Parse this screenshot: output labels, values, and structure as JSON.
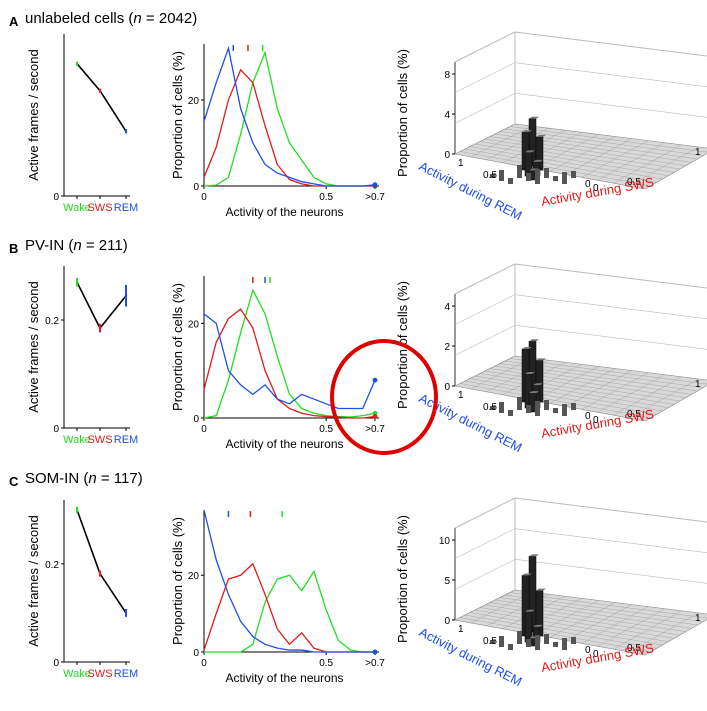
{
  "colors": {
    "wake": "#22dd22",
    "sws": "#e21b1b",
    "rem": "#1f4fe6",
    "mean": "#000000",
    "highlight": "#e00000"
  },
  "panels": [
    {
      "letter": "A",
      "name": "unlabeled cells",
      "n_prefix": "(",
      "n_symbol": "n",
      "n_text": " = 2042)"
    },
    {
      "letter": "B",
      "name": "PV-IN",
      "n_prefix": "(",
      "n_symbol": "n",
      "n_text": " = 211)"
    },
    {
      "letter": "C",
      "name": "SOM-IN",
      "n_prefix": "(",
      "n_symbol": "n",
      "n_text": " = 117)"
    }
  ],
  "labels": {
    "active_ylabel": "Active frames / second",
    "prop_ylabel": "Proportion of cells (%)",
    "activity_xlabel": "Activity of the neurons",
    "wake": "Wake",
    "sws": "SWS",
    "rem": "REM",
    "rem_axis": "Activity during REM",
    "sws_axis": "Activity during SWS"
  },
  "chart_data": [
    {
      "panel": "A",
      "type": "line",
      "title": "Active frames / second",
      "categories": [
        "Wake",
        "SWS",
        "REM"
      ],
      "ylim": [
        0,
        0.3
      ],
      "yticks": [
        "0"
      ],
      "values": [
        0.245,
        0.195,
        0.12
      ],
      "errors": [
        0.004,
        0.004,
        0.004
      ]
    },
    {
      "panel": "A",
      "type": "line",
      "title": "Proportion of cells (%)",
      "xlabel": "Activity of the neurons",
      "xlim": [
        0,
        0.7
      ],
      "ylim": [
        0,
        33
      ],
      "xticks": [
        "0",
        "0.5",
        ">0.7"
      ],
      "yticks": [
        "0",
        "20"
      ],
      "x": [
        0,
        0.05,
        0.1,
        0.15,
        0.2,
        0.25,
        0.3,
        0.35,
        0.4,
        0.45,
        0.5,
        0.55,
        0.6,
        0.65,
        0.7
      ],
      "medians": {
        "wake": 0.24,
        "sws": 0.18,
        "rem": 0.12
      },
      "series": [
        {
          "name": "Wake",
          "values": [
            0,
            0.2,
            2,
            12,
            24,
            31,
            18,
            10,
            6,
            2,
            0.5,
            0,
            0,
            0,
            0
          ]
        },
        {
          "name": "SWS",
          "values": [
            2,
            9,
            20,
            27,
            24,
            14,
            5,
            1.5,
            0.5,
            0,
            0,
            0,
            0,
            0,
            0
          ]
        },
        {
          "name": "REM",
          "values": [
            15,
            24,
            32,
            18,
            10,
            5,
            3,
            2,
            1,
            0.5,
            0,
            0,
            0,
            0,
            0.3
          ]
        }
      ]
    },
    {
      "panel": "A",
      "type": "bar3d",
      "title": "Proportion of cells (%)",
      "zticks": [
        "0",
        "4",
        "8"
      ],
      "peak_heights": [
        5,
        4,
        3.5,
        2.5,
        1.5,
        1
      ]
    },
    {
      "panel": "B",
      "type": "line",
      "title": "Active frames / second",
      "categories": [
        "Wake",
        "SWS",
        "REM"
      ],
      "ylim": [
        0,
        0.3
      ],
      "yticks": [
        "0",
        "0.2"
      ],
      "values": [
        0.27,
        0.185,
        0.245
      ],
      "errors": [
        0.008,
        0.008,
        0.02
      ]
    },
    {
      "panel": "B",
      "type": "line",
      "title": "Proportion of cells (%)",
      "xlabel": "Activity of the neurons",
      "xlim": [
        0,
        0.7
      ],
      "ylim": [
        0,
        30
      ],
      "xticks": [
        "0",
        "0.5",
        ">0.7"
      ],
      "yticks": [
        "0",
        "20"
      ],
      "x": [
        0,
        0.05,
        0.1,
        0.15,
        0.2,
        0.25,
        0.3,
        0.35,
        0.4,
        0.45,
        0.5,
        0.55,
        0.6,
        0.65,
        0.7
      ],
      "medians": {
        "wake": 0.27,
        "sws": 0.2,
        "rem": 0.25
      },
      "series": [
        {
          "name": "Wake",
          "values": [
            0,
            0.5,
            8,
            18,
            27,
            22,
            13,
            5,
            2,
            1,
            0.5,
            0.3,
            0.2,
            0.5,
            1
          ]
        },
        {
          "name": "SWS",
          "values": [
            6,
            16,
            21,
            23,
            19,
            10,
            4,
            2,
            1,
            0.5,
            0.3,
            0.2,
            0,
            0,
            0.3
          ]
        },
        {
          "name": "REM",
          "values": [
            22,
            20,
            10,
            7,
            5,
            7,
            4,
            3,
            5,
            4,
            3,
            2,
            2,
            2,
            8
          ]
        }
      ]
    },
    {
      "panel": "B",
      "type": "bar3d",
      "title": "Proportion of cells (%)",
      "zticks": [
        "0",
        "2",
        "4"
      ],
      "peak_heights": [
        3,
        2.8,
        2.2,
        1.8,
        1.2,
        1
      ]
    },
    {
      "panel": "C",
      "type": "line",
      "title": "Active frames / second",
      "categories": [
        "Wake",
        "SWS",
        "REM"
      ],
      "ylim": [
        0,
        0.33
      ],
      "yticks": [
        "0",
        "0.2"
      ],
      "values": [
        0.31,
        0.18,
        0.1
      ],
      "errors": [
        0.006,
        0.006,
        0.008
      ]
    },
    {
      "panel": "C",
      "type": "line",
      "title": "Proportion of cells (%)",
      "xlabel": "Activity of the neurons",
      "xlim": [
        0,
        0.7
      ],
      "ylim": [
        0,
        37
      ],
      "xticks": [
        "0",
        "0.5",
        ">0.7"
      ],
      "yticks": [
        "0",
        "20"
      ],
      "x": [
        0,
        0.05,
        0.1,
        0.15,
        0.2,
        0.25,
        0.3,
        0.35,
        0.4,
        0.45,
        0.5,
        0.55,
        0.6,
        0.65,
        0.7
      ],
      "medians": {
        "wake": 0.32,
        "sws": 0.19,
        "rem": 0.1
      },
      "series": [
        {
          "name": "Wake",
          "values": [
            0,
            0,
            0,
            0,
            2,
            13,
            19,
            20,
            16,
            21,
            11,
            3,
            0.5,
            0,
            0
          ]
        },
        {
          "name": "SWS",
          "values": [
            0.5,
            10,
            19,
            20,
            23,
            15,
            6,
            2,
            5,
            1,
            0,
            0,
            0,
            0,
            0
          ]
        },
        {
          "name": "REM",
          "values": [
            37,
            24,
            15,
            8,
            4,
            2,
            1,
            0.5,
            0.5,
            0,
            0,
            0,
            0,
            0,
            0
          ]
        }
      ]
    },
    {
      "panel": "C",
      "type": "bar3d",
      "title": "Proportion of cells (%)",
      "zticks": [
        "0",
        "5",
        "10"
      ],
      "peak_heights": [
        10,
        8,
        6,
        4,
        2,
        1
      ]
    }
  ]
}
